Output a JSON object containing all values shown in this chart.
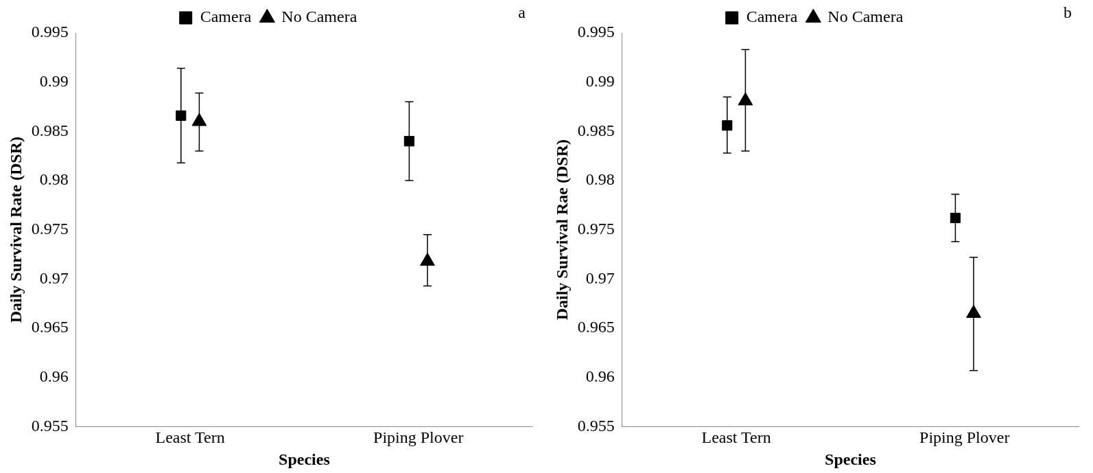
{
  "chart_data": [
    {
      "type": "scatter",
      "categories": [
        "Least Tern",
        "Piping Plover"
      ],
      "xlabel": "Species",
      "ylabel": "Daily Survival Rate (DSR)",
      "ylim": [
        0.955,
        0.995
      ],
      "yticks": [
        0.955,
        0.96,
        0.965,
        0.97,
        0.975,
        0.98,
        0.985,
        0.99,
        0.995
      ],
      "grid": false,
      "legend": "top",
      "annotations": [
        "a"
      ],
      "series": [
        {
          "name": "Camera",
          "color": "#000000",
          "marker": "square",
          "values": [
            0.9866,
            0.984
          ],
          "errors": [
            [
              0.9818,
              0.9914
            ],
            [
              0.98,
              0.988
            ]
          ]
        },
        {
          "name": "No Camera",
          "color": "#000000",
          "marker": "triangle",
          "values": [
            0.986,
            0.9718
          ],
          "errors": [
            [
              0.983,
              0.9889
            ],
            [
              0.9693,
              0.9745
            ]
          ]
        }
      ]
    },
    {
      "type": "scatter",
      "categories": [
        "Least Tern",
        "Piping Plover"
      ],
      "xlabel": "Species",
      "ylabel": "Daily Survival Rae (DSR)",
      "ylim": [
        0.955,
        0.995
      ],
      "yticks": [
        0.955,
        0.96,
        0.965,
        0.97,
        0.975,
        0.98,
        0.985,
        0.99,
        0.995
      ],
      "grid": false,
      "legend": "top",
      "annotations": [
        "b"
      ],
      "series": [
        {
          "name": "Camera",
          "color": "#000000",
          "marker": "square",
          "values": [
            0.9856,
            0.9762
          ],
          "errors": [
            [
              0.9828,
              0.9885
            ],
            [
              0.9738,
              0.9786
            ]
          ]
        },
        {
          "name": "No Camera",
          "color": "#000000",
          "marker": "triangle",
          "values": [
            0.9881,
            0.9665
          ],
          "errors": [
            [
              0.983,
              0.9933
            ],
            [
              0.9607,
              0.9722
            ]
          ]
        }
      ]
    }
  ]
}
